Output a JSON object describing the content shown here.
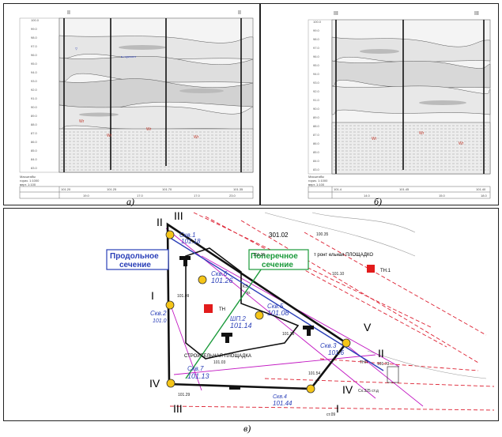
{
  "figure": {
    "caption_a": "а)",
    "caption_b": "б)",
    "caption_c": "в)"
  },
  "section_a": {
    "roman_left": "II",
    "roman_right": "II",
    "depth_labels": [
      "100.0",
      "99.0",
      "98.0",
      "97.0",
      "96.0",
      "95.0",
      "94.0",
      "93.0",
      "92.0",
      "91.0",
      "90.0",
      "89.0",
      "88.0",
      "87.0",
      "86.0",
      "85.0",
      "84.0",
      "83.0"
    ],
    "legend_lines": [
      "Масштабы",
      "гориз. 1:1000",
      "верт. 1:100"
    ],
    "bottom_row": [
      "101.20",
      "101.25",
      "101.70",
      "101.35"
    ],
    "bottom_row2": [
      "19.0",
      "17.0",
      "17.0",
      "23.0"
    ]
  },
  "section_b": {
    "roman_left": "III",
    "roman_right": "III",
    "depth_labels": [
      "100.0",
      "99.0",
      "98.0",
      "97.0",
      "96.0",
      "95.0",
      "94.0",
      "93.0",
      "92.0",
      "91.0",
      "90.0",
      "89.0",
      "88.0",
      "87.0",
      "86.0",
      "85.0",
      "84.0",
      "83.0"
    ],
    "legend_lines": [
      "Масштабы",
      "гориз. 1:1000",
      "верт. 1:100"
    ],
    "bottom_row": [
      "101.4",
      "101.45",
      "101.40"
    ],
    "bottom_row2": [
      "14.0",
      "15.0",
      "18.0"
    ]
  },
  "plan": {
    "label_longitudinal": [
      "Продольное",
      "сечение"
    ],
    "label_transverse": [
      "Поперечное",
      "сечение"
    ],
    "contour_label": "301.02",
    "area_label_top": "т ронт ельная  ПЛОЩАДКО",
    "area_label_mid": "СТРОИТЕЛЬНАЯ ПЛОЩАДКА",
    "tn1": "ТН.1",
    "tn2": "ТН",
    "roman": {
      "ii_top": "II",
      "iii_top": "III",
      "i_left": "I",
      "iv_left": "IV",
      "v_right": "V",
      "ii_right": "II",
      "iv_bottom": "IV",
      "iii_bottom": "III",
      "i_bottom": "I"
    },
    "boreholes": [
      {
        "name": "Скв.1",
        "elev": "101.18"
      },
      {
        "name": "Скв.6",
        "elev": "101.26"
      },
      {
        "name": "Скв.5",
        "elev": "101.08"
      },
      {
        "name": "ШП.2",
        "elev": "101.14"
      },
      {
        "name": "Скв.2",
        "elev": "101.0"
      },
      {
        "name": "Скв.3",
        "elev": "101.6"
      },
      {
        "name": "Скв.7",
        "elev": "101.13"
      },
      {
        "name": "Скв.4",
        "elev": "101.44"
      }
    ],
    "spot_elevations": [
      "101.10",
      "101.09",
      "101.38",
      "101.03",
      "101.29",
      "101.73",
      "101.54",
      "101.25"
    ],
    "misc_labels": [
      "100.35",
      "КЭ",
      "тр.",
      "ТНП",
      "Сх.325 ст.д",
      "ст.09"
    ]
  }
}
